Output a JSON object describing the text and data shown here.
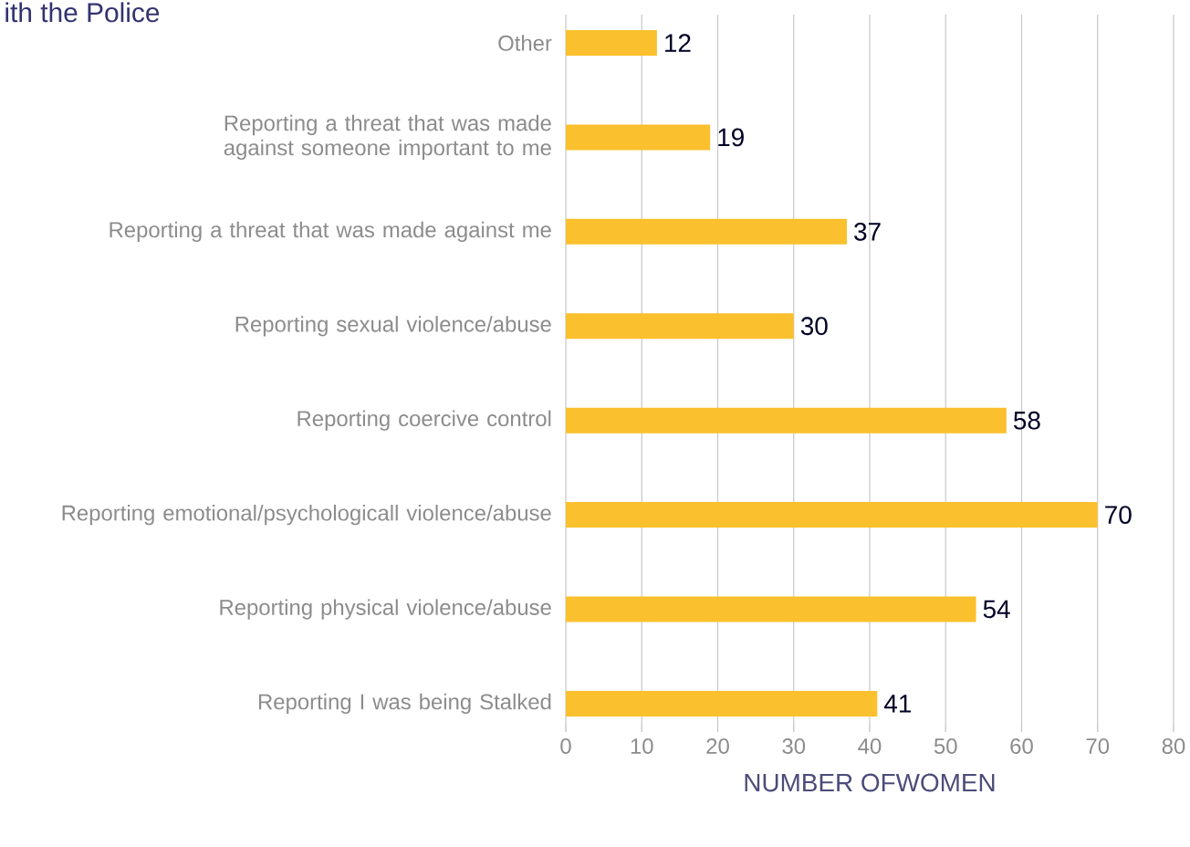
{
  "chart_data": {
    "type": "bar",
    "orientation": "horizontal",
    "title": "ith the Police",
    "categories": [
      "Other",
      "Reporting a threat that was made against someone important to me",
      "Reporting a threat that was made against me",
      "Reporting sexual violence/abuse",
      "Reporting coercive control",
      "Reporting emotional/psychologicall violence/abuse",
      "Reporting physical violence/abuse",
      "Reporting I was being Stalked"
    ],
    "values": [
      12,
      19,
      37,
      30,
      58,
      70,
      54,
      41
    ],
    "color": "#fbc02d",
    "xlim": [
      0,
      80
    ],
    "xticks": [
      0,
      10,
      20,
      30,
      40,
      50,
      60,
      70,
      80
    ],
    "xlabel": "NUMBER OFWOMEN",
    "grid": "x",
    "data_labels": true
  }
}
